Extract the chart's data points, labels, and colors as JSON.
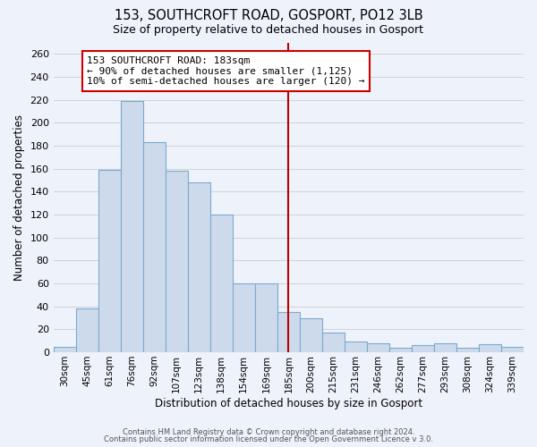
{
  "title": "153, SOUTHCROFT ROAD, GOSPORT, PO12 3LB",
  "subtitle": "Size of property relative to detached houses in Gosport",
  "xlabel": "Distribution of detached houses by size in Gosport",
  "ylabel": "Number of detached properties",
  "bar_labels": [
    "30sqm",
    "45sqm",
    "61sqm",
    "76sqm",
    "92sqm",
    "107sqm",
    "123sqm",
    "138sqm",
    "154sqm",
    "169sqm",
    "185sqm",
    "200sqm",
    "215sqm",
    "231sqm",
    "246sqm",
    "262sqm",
    "277sqm",
    "293sqm",
    "308sqm",
    "324sqm",
    "339sqm"
  ],
  "bar_values": [
    5,
    38,
    159,
    219,
    183,
    158,
    148,
    120,
    60,
    60,
    35,
    30,
    17,
    9,
    8,
    4,
    6,
    8,
    4,
    7,
    5
  ],
  "bar_color": "#cddaeb",
  "bar_edge_color": "#7aaad0",
  "grid_color": "#cccccc",
  "vline_x_index": 10,
  "vline_color": "#bb0000",
  "annotation_line1": "153 SOUTHCROFT ROAD: 183sqm",
  "annotation_line2": "← 90% of detached houses are smaller (1,125)",
  "annotation_line3": "10% of semi-detached houses are larger (120) →",
  "annotation_box_edge": "#cc0000",
  "ylim": [
    0,
    270
  ],
  "yticks": [
    0,
    20,
    40,
    60,
    80,
    100,
    120,
    140,
    160,
    180,
    200,
    220,
    240,
    260
  ],
  "footer1": "Contains HM Land Registry data © Crown copyright and database right 2024.",
  "footer2": "Contains public sector information licensed under the Open Government Licence v 3.0.",
  "background_color": "#eef2fa"
}
